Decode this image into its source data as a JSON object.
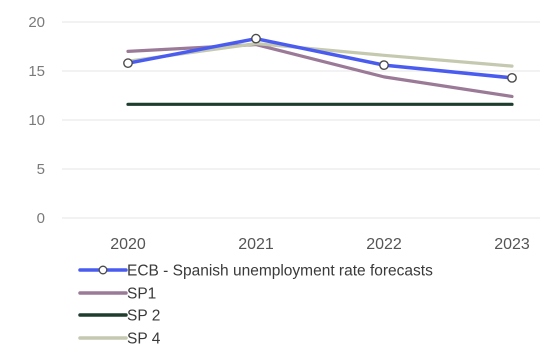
{
  "chart_data": {
    "type": "line",
    "categories": [
      "2020",
      "2021",
      "2022",
      "2023"
    ],
    "ylim": [
      0,
      20
    ],
    "yticks": [
      0,
      5,
      10,
      15,
      20
    ],
    "grid": true,
    "legend_position": "bottom",
    "series": [
      {
        "name": "ECB - Spanish unemployment rate forecasts",
        "values": [
          15.8,
          18.3,
          15.6,
          14.3
        ],
        "color": "#4a5cf0",
        "markers": true
      },
      {
        "name": "SP1",
        "values": [
          17.0,
          17.7,
          14.4,
          12.4
        ],
        "color": "#9b7a98",
        "markers": false
      },
      {
        "name": "SP 2",
        "values": [
          11.6,
          11.6,
          11.6,
          11.6
        ],
        "color": "#1f3d2e",
        "markers": false
      },
      {
        "name": "SP 4",
        "values": [
          16.0,
          17.8,
          16.6,
          15.5
        ],
        "color": "#c4c9b0",
        "markers": false
      }
    ]
  }
}
